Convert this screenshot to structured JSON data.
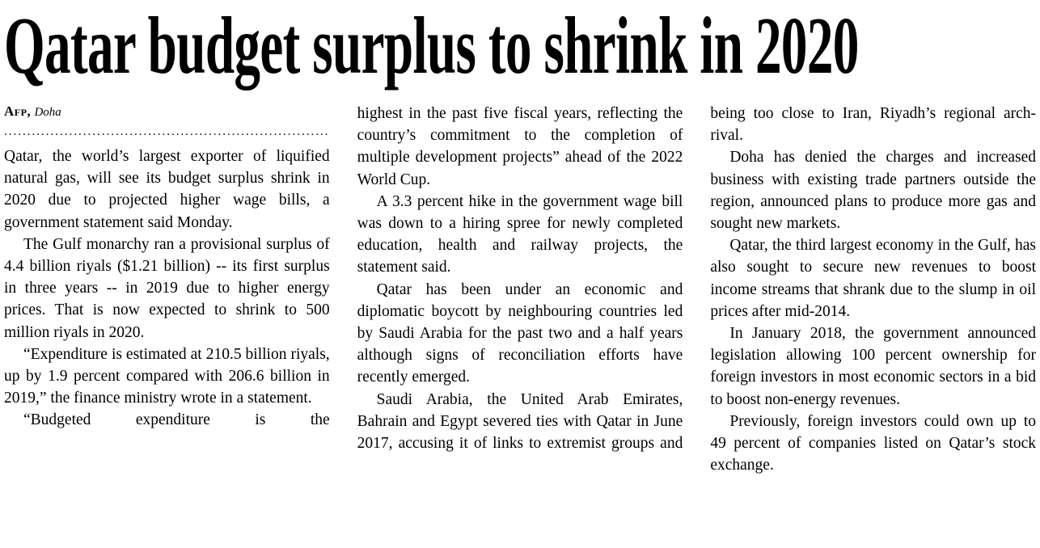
{
  "article": {
    "headline": "Qatar budget surplus to shrink in 2020",
    "byline": {
      "agency": "Afp,",
      "location": "Doha"
    },
    "separator": "................................................................................",
    "columns": [
      {
        "paragraphs": [
          "Qatar, the world’s largest exporter of liquified natural gas, will see its budget surplus shrink in 2020 due to projected higher wage bills, a government statement said Monday.",
          "The Gulf monarchy ran a provisional surplus of 4.4 billion riyals ($1.21 billion) -- its first surplus in three years -- in 2019 due to higher energy prices. That is now expected to shrink to 500 million riyals in 2020.",
          "“Expenditure is estimated at 210.5 billion riyals, up by 1.9 percent compared with 206.6 billion in 2019,” the finance ministry wrote in a statement.",
          "“Budgeted expenditure is the"
        ]
      },
      {
        "paragraphs": [
          "highest in the past five fiscal years, reflecting the country’s commitment to the completion of multiple development projects” ahead of the 2022 World Cup.",
          "A 3.3 percent hike in the government wage bill was down to a hiring spree for newly completed education, health and railway projects, the statement said.",
          "Qatar has been under an economic and diplomatic boycott by neighbouring countries led by Saudi Arabia for the past two and a half years although signs of reconciliation efforts have recently emerged.",
          "Saudi Arabia, the United Arab Emirates, Bahrain and Egypt severed ties with Qatar in June 2017, accusing it of links to extremist groups and"
        ]
      },
      {
        "paragraphs": [
          "being too close to Iran, Riyadh’s regional arch-rival.",
          "Doha has denied the charges and increased business with existing trade partners outside the region, announced plans to produce more gas and sought new markets.",
          "Qatar, the third largest economy in the Gulf, has also sought to secure new revenues to boost income streams that shrank due to the slump in oil prices after mid-2014.",
          "In January 2018, the government announced legislation allowing 100 percent ownership for foreign investors in most economic sectors in a bid to boost non-energy revenues.",
          "Previously, foreign investors could own up to 49 percent of companies listed on Qatar’s stock exchange."
        ]
      }
    ]
  }
}
